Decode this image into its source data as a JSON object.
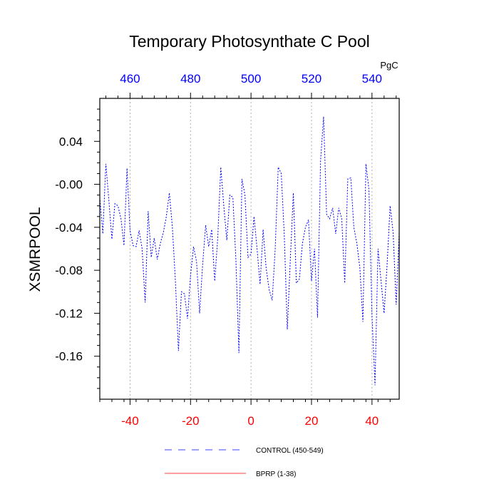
{
  "chart_data": {
    "type": "line",
    "title": "Temporary Photosynthate C Pool",
    "ylabel": "XSMRPOOL",
    "top_axis_unit": "PgC",
    "bottom_axis": {
      "range": [
        -50,
        49
      ],
      "ticks": [
        -40,
        -20,
        0,
        20,
        40
      ],
      "tick_labels": [
        "-40",
        "-20",
        "0",
        "20",
        "40"
      ],
      "color": "#ff0000"
    },
    "top_axis": {
      "range": [
        450,
        549
      ],
      "ticks": [
        460,
        480,
        500,
        520,
        540
      ],
      "tick_labels": [
        "460",
        "480",
        "500",
        "520",
        "540"
      ],
      "color": "#0000ff"
    },
    "y_axis": {
      "range": [
        -0.2,
        0.08
      ],
      "ticks": [
        0.04,
        0.0,
        -0.04,
        -0.08,
        -0.12,
        -0.16
      ],
      "tick_labels": [
        "0.04",
        "-0.00",
        "-0.04",
        "-0.08",
        "-0.12",
        "-0.16"
      ]
    },
    "vertical_gridlines_at_bottom_values": [
      -40,
      -20,
      0,
      20,
      40
    ],
    "legend": {
      "placement": "bottom-center",
      "entries": [
        {
          "label": "CONTROL (450-549)",
          "color": "#0000ff",
          "style": "dashed"
        },
        {
          "label": "BPRP (1-38)",
          "color": "#ff0000",
          "style": "solid"
        }
      ]
    },
    "series": [
      {
        "name": "CONTROL (450-549)",
        "color": "#0000ff",
        "style": "dashed",
        "x": [
          450,
          451,
          452,
          453,
          454,
          455,
          456,
          457,
          458,
          459,
          460,
          461,
          462,
          463,
          464,
          465,
          466,
          467,
          468,
          469,
          470,
          471,
          472,
          473,
          474,
          475,
          476,
          477,
          478,
          479,
          480,
          481,
          482,
          483,
          484,
          485,
          486,
          487,
          488,
          489,
          490,
          491,
          492,
          493,
          494,
          495,
          496,
          497,
          498,
          499,
          500,
          501,
          502,
          503,
          504,
          505,
          506,
          507,
          508,
          509,
          510,
          511,
          512,
          513,
          514,
          515,
          516,
          517,
          518,
          519,
          520,
          521,
          522,
          523,
          524,
          525,
          526,
          527,
          528,
          529,
          530,
          531,
          532,
          533,
          534,
          535,
          536,
          537,
          538,
          539,
          540,
          541,
          542,
          543,
          544,
          545,
          546,
          547,
          548,
          549
        ],
        "values": [
          -0.012,
          -0.046,
          0.019,
          -0.015,
          -0.051,
          -0.018,
          -0.02,
          -0.032,
          -0.057,
          0.015,
          -0.043,
          -0.057,
          -0.058,
          -0.043,
          -0.06,
          -0.11,
          -0.025,
          -0.068,
          -0.05,
          -0.07,
          -0.055,
          -0.045,
          -0.03,
          -0.008,
          -0.04,
          -0.09,
          -0.155,
          -0.1,
          -0.102,
          -0.125,
          -0.085,
          -0.058,
          -0.072,
          -0.12,
          -0.075,
          -0.038,
          -0.058,
          -0.042,
          -0.09,
          -0.05,
          0.016,
          -0.02,
          -0.052,
          -0.01,
          -0.012,
          -0.07,
          -0.157,
          0.005,
          -0.01,
          -0.068,
          -0.065,
          -0.03,
          -0.06,
          -0.093,
          -0.042,
          -0.078,
          -0.098,
          -0.108,
          -0.06,
          0.016,
          0.01,
          -0.047,
          -0.135,
          -0.07,
          -0.008,
          -0.092,
          -0.088,
          -0.055,
          -0.04,
          -0.033,
          -0.09,
          -0.06,
          -0.124,
          0.022,
          0.063,
          -0.028,
          -0.032,
          -0.022,
          -0.046,
          -0.022,
          -0.032,
          -0.092,
          0.005,
          0.006,
          -0.04,
          -0.055,
          -0.078,
          -0.128,
          0.019,
          -0.005,
          -0.122,
          -0.187,
          -0.06,
          -0.09,
          -0.12,
          -0.075,
          -0.02,
          -0.045,
          -0.112,
          -0.045
        ]
      }
    ]
  }
}
